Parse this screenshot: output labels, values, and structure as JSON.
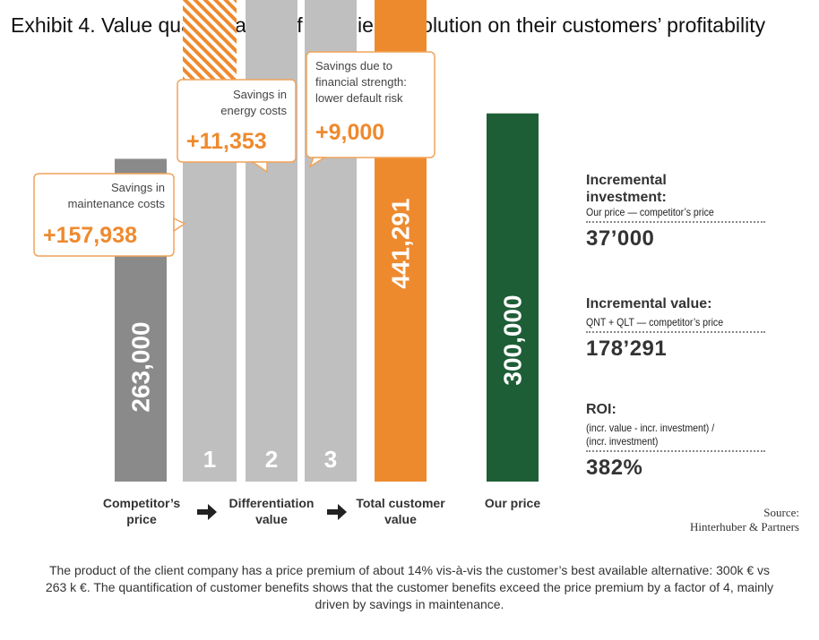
{
  "title": "Exhibit 4. Value quantification of the client’s solution on their customers’ profitability",
  "colors": {
    "grey": "#8a8a8a",
    "light_grey": "#bfbfbf",
    "orange": "#ee8a2e",
    "green": "#1e5e36"
  },
  "chart_data": {
    "type": "bar",
    "stacked": true,
    "categories": [
      "Competitor’s price",
      "1",
      "2",
      "3",
      "Total customer value",
      "Our price"
    ],
    "series": [
      {
        "name": "",
        "values": [
          263000,
          263000,
          420938,
          432291,
          441291,
          300000
        ]
      },
      {
        "name": "",
        "values": [
          0,
          157938,
          11353,
          9000,
          0,
          0
        ]
      }
    ],
    "bar_labels": [
      "263,000",
      "1",
      "2",
      "3",
      "441,291",
      "300,000"
    ],
    "x_groups": [
      "Competitor’s price",
      "Differentiation value",
      "Total customer value",
      "Our price"
    ],
    "callouts": [
      {
        "label": "Savings in maintenance costs",
        "value": "+157,938"
      },
      {
        "label": "Savings in energy costs",
        "value": "+11,353"
      },
      {
        "label": "Savings due to financial strength: lower default risk",
        "value": "+9,000"
      }
    ]
  },
  "callout_lines": [
    [
      "Savings in",
      "maintenance costs"
    ],
    [
      "Savings in",
      "energy costs"
    ],
    [
      "Savings due to",
      "financial strength:",
      "lower default risk"
    ]
  ],
  "group_label_lines": [
    [
      "Competitor’s",
      "price"
    ],
    [
      "Differentiation",
      "value"
    ],
    [
      "Total customer",
      "value"
    ],
    [
      "Our price"
    ]
  ],
  "metrics": [
    {
      "heading": [
        "Incremental",
        "investment:"
      ],
      "sub": [
        "Our price — competitor’s price"
      ],
      "value": "37’000"
    },
    {
      "heading": [
        "Incremental value:"
      ],
      "sub": [
        "QNT + QLT — competitor’s price"
      ],
      "value": "178’291"
    },
    {
      "heading": [
        "ROI:"
      ],
      "sub": [
        "(incr. value - incr. investment) /",
        "(incr. investment)"
      ],
      "value": "382%"
    }
  ],
  "source": [
    "Source:",
    "Hinterhuber & Partners"
  ],
  "caption": "The product of the client company has a price premium of about 14% vis-à-vis the customer’s best available alternative: 300k € vs 263 k €. The quantification of customer benefits shows that the customer benefits exceed the price premium by a factor of 4, mainly driven by savings in maintenance."
}
